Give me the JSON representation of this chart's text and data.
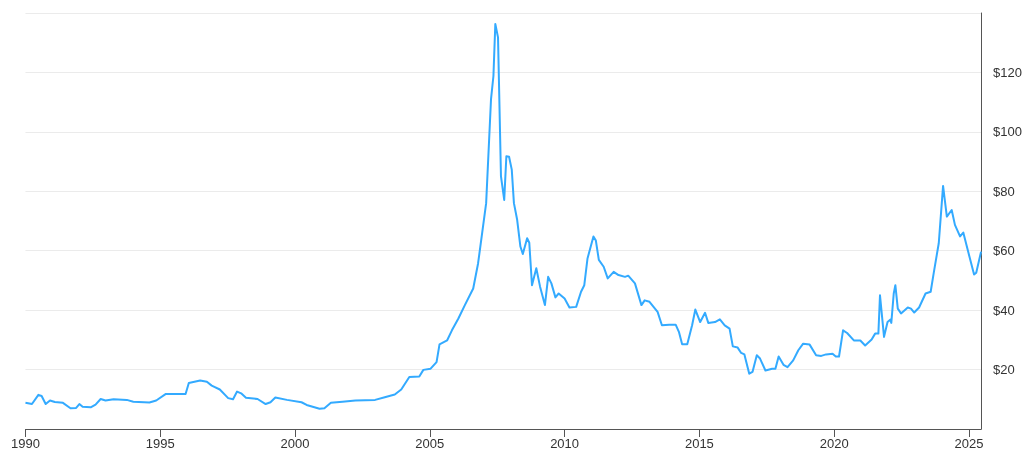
{
  "chart_data": {
    "type": "line",
    "x": [
      1990.0,
      1990.24,
      1990.48,
      1990.6,
      1990.75,
      1990.91,
      1991.09,
      1991.39,
      1991.67,
      1991.88,
      1992.0,
      1992.12,
      1992.42,
      1992.6,
      1992.79,
      1992.97,
      1993.27,
      1993.76,
      1994.0,
      1994.6,
      1994.85,
      1995.21,
      1995.94,
      1996.06,
      1996.48,
      1996.73,
      1996.91,
      1997.21,
      1997.52,
      1997.7,
      1997.85,
      1998.0,
      1998.18,
      1998.61,
      1998.91,
      1999.09,
      1999.27,
      1999.7,
      2000.24,
      2000.43,
      2000.91,
      2001.09,
      2001.33,
      2001.76,
      2002.24,
      2002.97,
      2003.33,
      2003.7,
      2003.94,
      2004.24,
      2004.61,
      2004.76,
      2005.03,
      2005.25,
      2005.36,
      2005.64,
      2005.82,
      2006.06,
      2006.3,
      2006.61,
      2006.79,
      2007.09,
      2007.27,
      2007.36,
      2007.43,
      2007.53,
      2007.64,
      2007.76,
      2007.84,
      2007.94,
      2008.04,
      2008.12,
      2008.24,
      2008.36,
      2008.45,
      2008.61,
      2008.69,
      2008.79,
      2008.95,
      2009.09,
      2009.27,
      2009.39,
      2009.51,
      2009.66,
      2009.78,
      2010.0,
      2010.18,
      2010.43,
      2010.61,
      2010.73,
      2010.85,
      2011.07,
      2011.16,
      2011.27,
      2011.45,
      2011.6,
      2011.82,
      2012.0,
      2012.24,
      2012.36,
      2012.61,
      2012.85,
      2012.97,
      2013.15,
      2013.45,
      2013.61,
      2013.88,
      2014.12,
      2014.24,
      2014.36,
      2014.55,
      2014.73,
      2014.85,
      2015.03,
      2015.21,
      2015.33,
      2015.58,
      2015.76,
      2015.94,
      2016.12,
      2016.24,
      2016.42,
      2016.55,
      2016.67,
      2016.85,
      2016.97,
      2017.13,
      2017.25,
      2017.45,
      2017.7,
      2017.82,
      2017.94,
      2018.12,
      2018.27,
      2018.48,
      2018.67,
      2018.85,
      2019.09,
      2019.33,
      2019.52,
      2019.7,
      2019.94,
      2020.06,
      2020.18,
      2020.33,
      2020.48,
      2020.73,
      2020.97,
      2021.15,
      2021.39,
      2021.52,
      2021.64,
      2021.7,
      2021.85,
      2021.98,
      2022.08,
      2022.12,
      2022.21,
      2022.27,
      2022.36,
      2022.48,
      2022.73,
      2022.85,
      2022.97,
      2023.15,
      2023.39,
      2023.58,
      2023.7,
      2023.88,
      2024.04,
      2024.18,
      2024.36,
      2024.48,
      2024.67,
      2024.79,
      2024.97,
      2025.19,
      2025.27,
      2025.45
    ],
    "series": [
      {
        "color": "#33aaff",
        "values": [
          8.8,
          8.4,
          11.5,
          11.1,
          8.4,
          9.6,
          9.1,
          8.8,
          7.0,
          7.1,
          8.4,
          7.5,
          7.3,
          8.2,
          10.1,
          9.6,
          10.0,
          9.8,
          9.2,
          8.9,
          9.6,
          11.8,
          11.8,
          15.5,
          16.3,
          15.9,
          14.6,
          13.3,
          10.4,
          10.0,
          12.6,
          12.0,
          10.5,
          10.1,
          8.4,
          9.0,
          10.6,
          9.8,
          9.0,
          8.1,
          6.8,
          7.0,
          8.8,
          9.2,
          9.6,
          9.8,
          10.7,
          11.6,
          13.3,
          17.5,
          17.7,
          19.9,
          20.3,
          22.5,
          28.5,
          29.8,
          33.2,
          37.2,
          41.7,
          47.3,
          55.7,
          76.0,
          110.9,
          118.8,
          136.3,
          131.8,
          85.0,
          77.1,
          91.8,
          91.6,
          87.3,
          76.0,
          70.4,
          61.4,
          58.9,
          64.2,
          62.7,
          48.4,
          54.1,
          47.9,
          41.7,
          51.2,
          49.0,
          44.3,
          45.6,
          43.9,
          40.9,
          41.1,
          46.2,
          48.4,
          57.4,
          64.8,
          63.4,
          56.9,
          54.6,
          50.7,
          52.9,
          51.8,
          51.2,
          51.6,
          49.0,
          41.7,
          43.3,
          42.8,
          39.4,
          34.9,
          35.1,
          35.1,
          32.7,
          28.5,
          28.5,
          34.9,
          40.2,
          36.0,
          39.1,
          35.7,
          36.0,
          36.9,
          34.9,
          33.8,
          27.8,
          27.4,
          25.6,
          25.1,
          18.6,
          19.2,
          24.8,
          23.7,
          19.7,
          20.3,
          20.3,
          24.4,
          21.6,
          20.8,
          23.1,
          26.5,
          28.7,
          28.4,
          24.8,
          24.6,
          25.1,
          25.3,
          24.4,
          24.4,
          33.2,
          32.3,
          29.8,
          29.8,
          28.1,
          30.1,
          32.1,
          32.1,
          45.0,
          31.0,
          36.0,
          36.8,
          35.7,
          45.6,
          48.4,
          40.5,
          38.9,
          40.9,
          40.5,
          39.2,
          40.9,
          45.6,
          46.2,
          52.9,
          62.5,
          81.8,
          71.5,
          73.7,
          68.7,
          64.8,
          66.1,
          59.7,
          52.0,
          52.6,
          59.7
        ]
      }
    ],
    "xlim": [
      1990,
      2025.45
    ],
    "xticks": [
      1990,
      1995,
      2000,
      2005,
      2010,
      2015,
      2020,
      2025
    ],
    "ylim": [
      0,
      140
    ],
    "yticks": [
      {
        "value": 20,
        "label": "$20"
      },
      {
        "value": 40,
        "label": "$40"
      },
      {
        "value": 60,
        "label": "$60"
      },
      {
        "value": 80,
        "label": "$80"
      },
      {
        "value": 100,
        "label": "$100"
      },
      {
        "value": 120,
        "label": "$120"
      },
      {
        "value": 140,
        "label": null
      }
    ],
    "grid": "y",
    "marker": "none",
    "line_style": "solid"
  }
}
